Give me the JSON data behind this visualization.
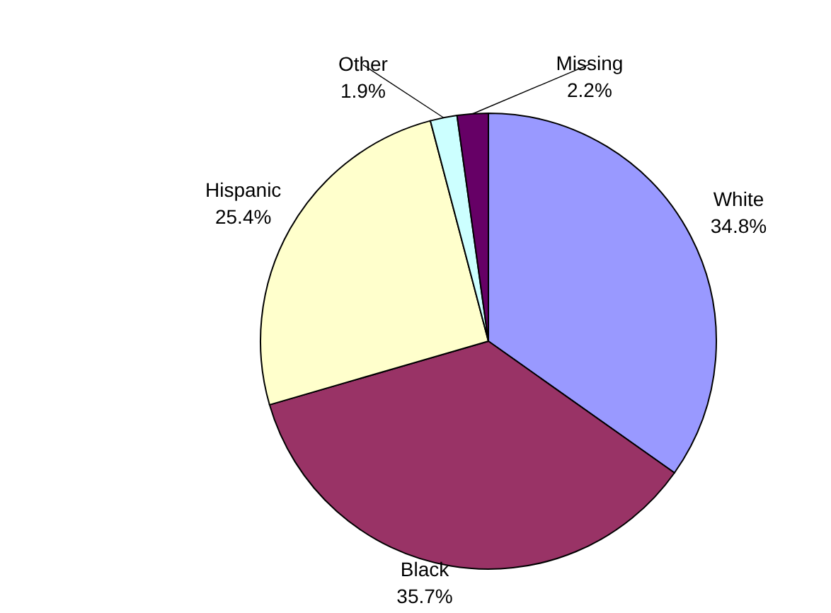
{
  "chart_data": {
    "type": "pie",
    "categories": [
      "White",
      "Black",
      "Hispanic",
      "Other",
      "Missing"
    ],
    "values": [
      34.8,
      35.7,
      25.4,
      1.9,
      2.2
    ],
    "colors": [
      "#9999ff",
      "#993366",
      "#ffffcc",
      "#ccffff",
      "#660066"
    ],
    "value_labels": [
      "34.8%",
      "35.7%",
      "25.4%",
      "1.9%",
      "2.2%"
    ]
  }
}
